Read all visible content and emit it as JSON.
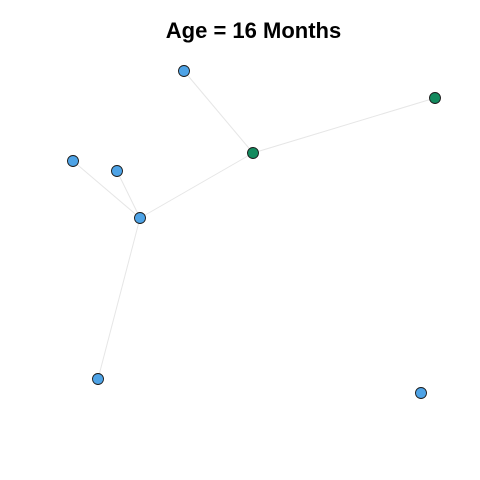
{
  "title": "Age = 16 Months",
  "colors": {
    "node_blue": "#4ea3e6",
    "node_green": "#138a5e",
    "node_stroke": "#1a1a1a",
    "edge": "#e6e6e6"
  },
  "network": {
    "nodes": [
      {
        "id": "n1",
        "group": "blue"
      },
      {
        "id": "n2",
        "group": "green"
      },
      {
        "id": "n3",
        "group": "green"
      },
      {
        "id": "n4",
        "group": "blue"
      },
      {
        "id": "n5",
        "group": "blue"
      },
      {
        "id": "n6",
        "group": "blue"
      },
      {
        "id": "n7",
        "group": "blue"
      },
      {
        "id": "n8",
        "group": "blue"
      }
    ],
    "edges": [
      {
        "source": "n1",
        "target": "n3"
      },
      {
        "source": "n3",
        "target": "n2"
      },
      {
        "source": "n3",
        "target": "n6"
      },
      {
        "source": "n4",
        "target": "n6"
      },
      {
        "source": "n5",
        "target": "n6"
      },
      {
        "source": "n6",
        "target": "n7"
      }
    ]
  }
}
